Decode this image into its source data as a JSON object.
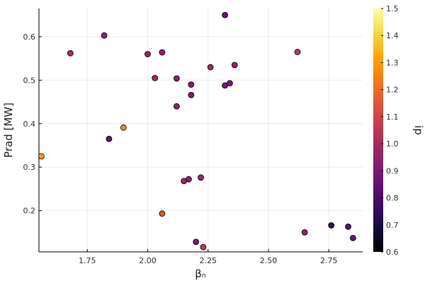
{
  "chart_data": {
    "type": "scatter",
    "title": "",
    "xlabel": "βₙ",
    "ylabel": "Prad [MW]",
    "xlim": [
      1.55,
      2.89
    ],
    "ylim": [
      0.105,
      0.665
    ],
    "x_ticks": [
      1.75,
      2.0,
      2.25,
      2.5,
      2.75
    ],
    "x_tick_labels": [
      "1.75",
      "2.00",
      "2.25",
      "2.50",
      "2.75"
    ],
    "y_ticks": [
      0.2,
      0.3,
      0.4,
      0.5,
      0.6
    ],
    "y_tick_labels": [
      "0.2",
      "0.3",
      "0.4",
      "0.5",
      "0.6"
    ],
    "grid": true,
    "colorbar": {
      "label": "ip",
      "colormap": "inferno",
      "range": [
        0.6,
        1.5
      ],
      "ticks": [
        0.6,
        0.7,
        0.8,
        0.9,
        1.0,
        1.1,
        1.2,
        1.3,
        1.4,
        1.5
      ],
      "tick_labels": [
        "0.6",
        "0.7",
        "0.8",
        "0.9",
        "1.0",
        "1.1",
        "1.2",
        "1.3",
        "1.4",
        "1.5"
      ]
    },
    "points": [
      {
        "x": 1.56,
        "y": 0.325,
        "c": 1.3
      },
      {
        "x": 1.68,
        "y": 0.562,
        "c": 1.0
      },
      {
        "x": 1.82,
        "y": 0.603,
        "c": 0.95
      },
      {
        "x": 1.84,
        "y": 0.365,
        "c": 0.85
      },
      {
        "x": 1.9,
        "y": 0.391,
        "c": 1.25
      },
      {
        "x": 2.0,
        "y": 0.56,
        "c": 0.95
      },
      {
        "x": 2.03,
        "y": 0.505,
        "c": 0.98
      },
      {
        "x": 2.06,
        "y": 0.564,
        "c": 0.95
      },
      {
        "x": 2.06,
        "y": 0.193,
        "c": 1.15
      },
      {
        "x": 2.12,
        "y": 0.504,
        "c": 0.92
      },
      {
        "x": 2.12,
        "y": 0.44,
        "c": 0.95
      },
      {
        "x": 2.15,
        "y": 0.268,
        "c": 0.98
      },
      {
        "x": 2.17,
        "y": 0.272,
        "c": 0.95
      },
      {
        "x": 2.18,
        "y": 0.49,
        "c": 0.92
      },
      {
        "x": 2.18,
        "y": 0.466,
        "c": 0.92
      },
      {
        "x": 2.2,
        "y": 0.128,
        "c": 0.88
      },
      {
        "x": 2.22,
        "y": 0.276,
        "c": 0.95
      },
      {
        "x": 2.23,
        "y": 0.116,
        "c": 1.05
      },
      {
        "x": 2.26,
        "y": 0.53,
        "c": 0.98
      },
      {
        "x": 2.32,
        "y": 0.65,
        "c": 0.85
      },
      {
        "x": 2.32,
        "y": 0.488,
        "c": 0.88
      },
      {
        "x": 2.34,
        "y": 0.493,
        "c": 0.88
      },
      {
        "x": 2.36,
        "y": 0.535,
        "c": 0.95
      },
      {
        "x": 2.62,
        "y": 0.565,
        "c": 1.05
      },
      {
        "x": 2.65,
        "y": 0.15,
        "c": 0.95
      },
      {
        "x": 2.76,
        "y": 0.166,
        "c": 0.75
      },
      {
        "x": 2.83,
        "y": 0.163,
        "c": 0.82
      },
      {
        "x": 2.85,
        "y": 0.137,
        "c": 0.85
      }
    ]
  }
}
